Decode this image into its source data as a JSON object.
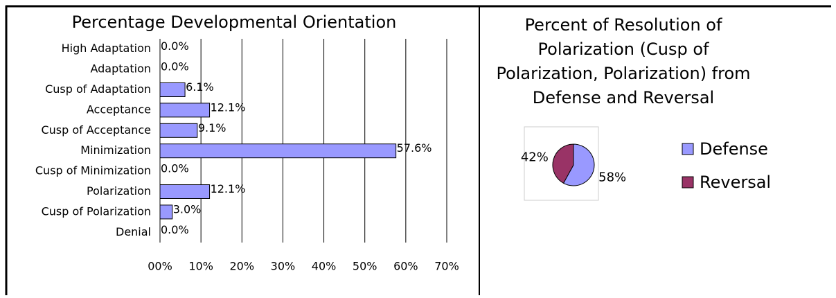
{
  "chart_data": [
    {
      "type": "bar",
      "orientation": "horizontal",
      "title": "Percentage Developmental Orientation",
      "categories": [
        "High Adaptation",
        "Adaptation",
        "Cusp of Adaptation",
        "Acceptance",
        "Cusp of Acceptance",
        "Minimization",
        "Cusp of Minimization",
        "Polarization",
        "Cusp of Polarization",
        "Denial"
      ],
      "values": [
        0,
        0,
        6.1,
        12.1,
        9.1,
        57.6,
        0,
        12.1,
        3.0,
        0
      ],
      "value_labels": [
        "0.0%",
        "0.0%",
        "6.1%",
        "12.1%",
        "9.1%",
        "57.6%",
        "0.0%",
        "12.1%",
        "3.0%",
        "0.0%"
      ],
      "color": "#9999ff",
      "xlim": [
        0,
        70
      ],
      "xticks": [
        {
          "value": 0,
          "label": "00%"
        },
        {
          "value": 10,
          "label": "10%"
        },
        {
          "value": 20,
          "label": "20%"
        },
        {
          "value": 30,
          "label": "30%"
        },
        {
          "value": 40,
          "label": "40%"
        },
        {
          "value": 50,
          "label": "50%"
        },
        {
          "value": 60,
          "label": "60%"
        },
        {
          "value": 70,
          "label": "70%"
        }
      ],
      "grid": true
    },
    {
      "type": "pie",
      "title": [
        "Percent of Resolution of",
        "Polarization (Cusp of",
        "Polarization, Polarization) from",
        "Defense and Reversal"
      ],
      "categories": [
        "Defense",
        "Reversal"
      ],
      "values": [
        58,
        42
      ],
      "value_labels": [
        "58%",
        "42%"
      ],
      "colors": [
        "#9999ff",
        "#993366"
      ],
      "legend": "right"
    }
  ]
}
